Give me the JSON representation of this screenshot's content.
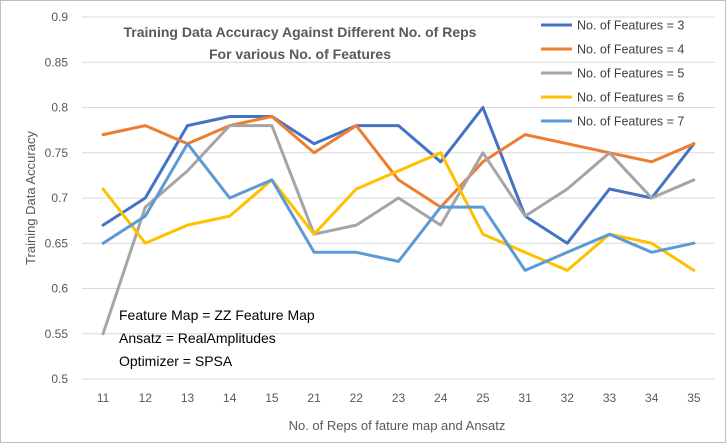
{
  "chart_data": {
    "type": "line",
    "title_lines": [
      "Training Data Accuracy Against Different No. of Reps",
      "For various No. of Features"
    ],
    "xlabel": "No. of Reps of fature map and Ansatz",
    "ylabel": "Training Data Accuracy",
    "categories": [
      "11",
      "12",
      "13",
      "14",
      "15",
      "21",
      "22",
      "23",
      "24",
      "25",
      "31",
      "32",
      "33",
      "34",
      "35"
    ],
    "ylim": [
      0.5,
      0.9
    ],
    "yticks": [
      0.5,
      0.55,
      0.6,
      0.65,
      0.7,
      0.75,
      0.8,
      0.85,
      0.9
    ],
    "ytick_labels": [
      "0.5",
      "0.55",
      "0.6",
      "0.65",
      "0.7",
      "0.75",
      "0.8",
      "0.85",
      "0.9"
    ],
    "grid": "horizontal",
    "legend_position": "top-right",
    "series": [
      {
        "name": "No. of Features = 3",
        "color": "#4472C4",
        "values": [
          0.67,
          0.7,
          0.78,
          0.79,
          0.79,
          0.76,
          0.78,
          0.78,
          0.74,
          0.8,
          0.68,
          0.65,
          0.71,
          0.7,
          0.76
        ]
      },
      {
        "name": "No. of Features = 4",
        "color": "#ED7D31",
        "values": [
          0.77,
          0.78,
          0.76,
          0.78,
          0.79,
          0.75,
          0.78,
          0.72,
          0.69,
          0.74,
          0.77,
          0.76,
          0.75,
          0.74,
          0.76
        ]
      },
      {
        "name": "No. of Features = 5",
        "color": "#A5A5A5",
        "values": [
          0.55,
          0.69,
          0.73,
          0.78,
          0.78,
          0.66,
          0.67,
          0.7,
          0.67,
          0.75,
          0.68,
          0.71,
          0.75,
          0.7,
          0.72
        ]
      },
      {
        "name": "No. of Features = 6",
        "color": "#FFC000",
        "values": [
          0.71,
          0.65,
          0.67,
          0.68,
          0.72,
          0.66,
          0.71,
          0.73,
          0.75,
          0.66,
          0.64,
          0.62,
          0.66,
          0.65,
          0.62
        ]
      },
      {
        "name": "No. of Features = 7",
        "color": "#5B9BD5",
        "values": [
          0.65,
          0.68,
          0.76,
          0.7,
          0.72,
          0.64,
          0.64,
          0.63,
          0.69,
          0.69,
          0.62,
          0.64,
          0.66,
          0.64,
          0.65
        ]
      }
    ],
    "annotations": [
      "Feature Map = ZZ Feature Map",
      "Ansatz = RealAmplitudes",
      "Optimizer = SPSA"
    ]
  }
}
